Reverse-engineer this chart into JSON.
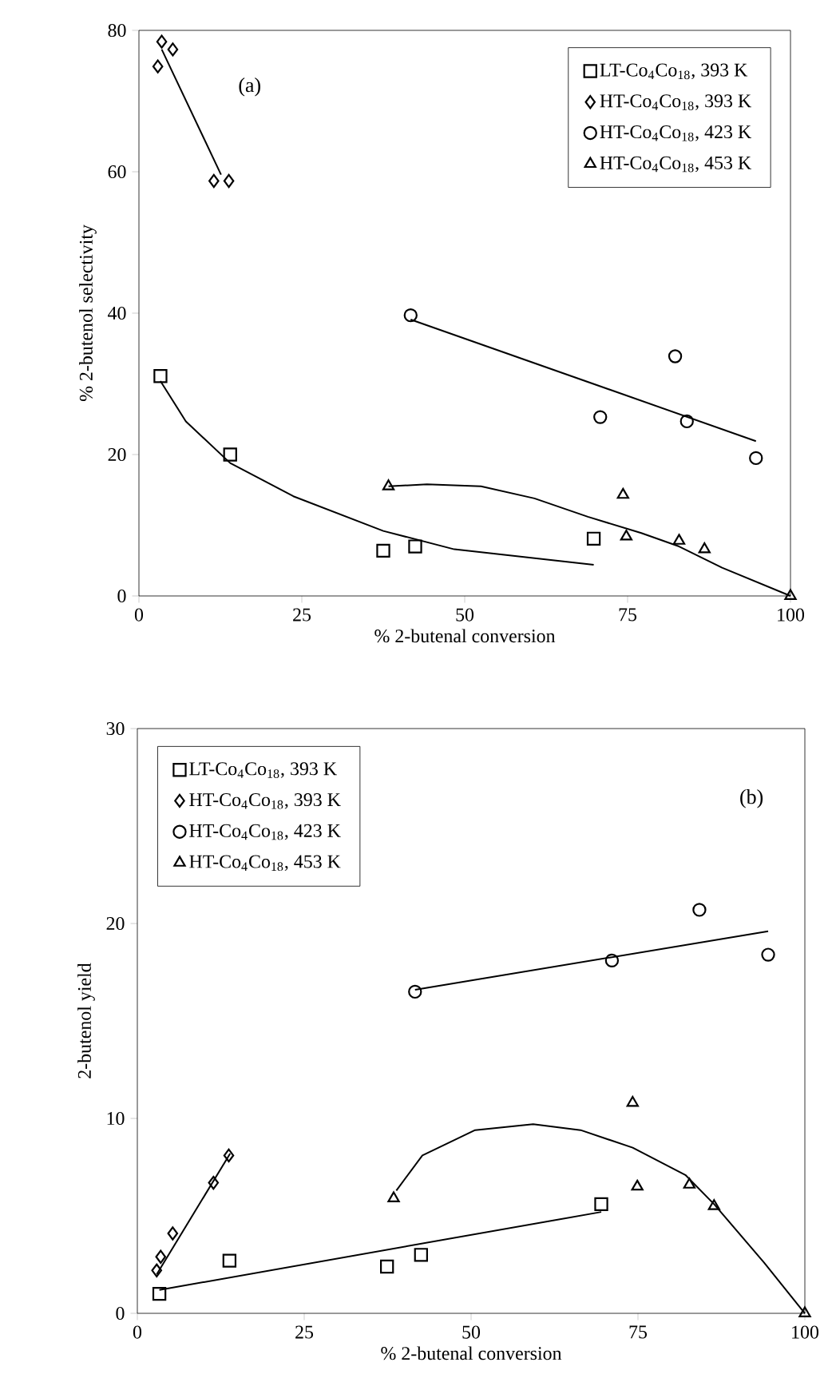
{
  "chart_data": [
    {
      "type": "scatter",
      "xlabel": "% 2-butenal conversion",
      "ylabel": "% 2-butenol  selectivity",
      "annotations": [
        "(a)"
      ],
      "xlim": [
        0,
        100
      ],
      "ylim": [
        0,
        80
      ],
      "xticks": [
        0,
        25,
        50,
        75,
        100
      ],
      "yticks": [
        0,
        20,
        40,
        60,
        80
      ],
      "legend": "top right",
      "grid": false,
      "series": [
        {
          "name": "LT-Co$_{4}$Co$_{18}$, 393 K",
          "marker": "square",
          "color": "#000000",
          "x": [
            3.3,
            14.0,
            37.5,
            42.4,
            69.8
          ],
          "values": [
            31.1,
            20.0,
            6.4,
            7.0,
            8.1
          ]
        },
        {
          "name": "HT-Co$_{4}$Co$_{18}$, 393 K",
          "marker": "diamond",
          "color": "#000000",
          "x": [
            2.9,
            3.5,
            5.2,
            11.5,
            13.8
          ],
          "values": [
            74.9,
            78.4,
            77.3,
            58.7,
            58.7
          ]
        },
        {
          "name": "HT-Co$_{4}$Co$_{18}$, 423 K",
          "marker": "circle",
          "color": "#000000",
          "x": [
            41.7,
            70.8,
            82.3,
            84.1,
            94.7
          ],
          "values": [
            39.7,
            25.3,
            33.9,
            24.7,
            19.5
          ]
        },
        {
          "name": "HT-Co$_{4}$Co$_{18}$, 453 K",
          "marker": "triangle",
          "color": "#000000",
          "x": [
            38.3,
            74.3,
            74.8,
            82.9,
            86.8,
            100
          ],
          "values": [
            15.5,
            14.3,
            8.4,
            7.8,
            6.6,
            0
          ]
        },
        {
          "type": "line",
          "marker": "none",
          "color": "#000000",
          "x": [
            3.3,
            7.2,
            14.0,
            23.7,
            37.5,
            48.4,
            69.8
          ],
          "values": [
            30.4,
            24.7,
            18.8,
            14.1,
            9.2,
            6.6,
            4.4
          ]
        },
        {
          "type": "line",
          "marker": "none",
          "color": "#000000",
          "x": [
            3.5,
            12.6
          ],
          "values": [
            77.3,
            59.6
          ]
        },
        {
          "type": "line",
          "marker": "none",
          "color": "#000000",
          "x": [
            41.7,
            94.7
          ],
          "values": [
            39.1,
            21.9
          ]
        },
        {
          "type": "line",
          "marker": "none",
          "color": "#000000",
          "x": [
            38.3,
            44.2,
            52.5,
            60.7,
            68.9,
            77.1,
            82.9,
            89.5,
            100
          ],
          "values": [
            15.5,
            15.8,
            15.5,
            13.8,
            11.2,
            8.9,
            7.0,
            4.0,
            0
          ]
        }
      ]
    },
    {
      "type": "scatter",
      "xlabel": "% 2-butenal conversion",
      "ylabel": "2-butenol yield",
      "annotations": [
        "(b)"
      ],
      "xlim": [
        0,
        100
      ],
      "ylim": [
        0,
        30
      ],
      "xticks": [
        0,
        25,
        50,
        75,
        100
      ],
      "yticks": [
        0,
        10,
        20,
        30
      ],
      "legend": "top left",
      "grid": false,
      "series": [
        {
          "name": "LT-Co$_{4}$Co$_{18}$, 393 K",
          "marker": "square",
          "color": "#000000",
          "x": [
            3.3,
            13.8,
            37.4,
            42.5,
            69.5
          ],
          "values": [
            1.0,
            2.7,
            2.4,
            3.0,
            5.6
          ]
        },
        {
          "name": "HT-Co$_{4}$Co$_{18}$, 393 K",
          "marker": "diamond",
          "color": "#000000",
          "x": [
            2.9,
            3.5,
            5.3,
            11.4,
            13.7
          ],
          "values": [
            2.2,
            2.9,
            4.1,
            6.7,
            8.1
          ]
        },
        {
          "name": "HT-Co$_{4}$Co$_{18}$, 423 K",
          "marker": "circle",
          "color": "#000000",
          "x": [
            41.6,
            71.1,
            84.2,
            94.5
          ],
          "values": [
            16.5,
            18.1,
            20.7,
            18.4
          ]
        },
        {
          "name": "HT-Co$_{4}$Co$_{18}$, 453 K",
          "marker": "triangle",
          "color": "#000000",
          "x": [
            38.4,
            74.2,
            74.9,
            82.7,
            86.4,
            100
          ],
          "values": [
            5.9,
            10.8,
            6.5,
            6.6,
            5.5,
            0
          ]
        },
        {
          "type": "line",
          "marker": "none",
          "color": "#000000",
          "x": [
            3.3,
            69.5
          ],
          "values": [
            1.2,
            5.2
          ]
        },
        {
          "type": "line",
          "marker": "none",
          "color": "#000000",
          "x": [
            2.9,
            13.9
          ],
          "values": [
            2.0,
            8.2
          ]
        },
        {
          "type": "line",
          "marker": "none",
          "color": "#000000",
          "x": [
            41.6,
            94.5
          ],
          "values": [
            16.6,
            19.6
          ]
        },
        {
          "type": "line",
          "marker": "none",
          "color": "#000000",
          "x": [
            38.8,
            42.7,
            50.6,
            59.3,
            66.4,
            74.2,
            82.1,
            86.4,
            93.9,
            100
          ],
          "values": [
            6.3,
            8.1,
            9.4,
            9.7,
            9.4,
            8.5,
            7.1,
            5.6,
            2.6,
            0
          ]
        }
      ]
    }
  ]
}
